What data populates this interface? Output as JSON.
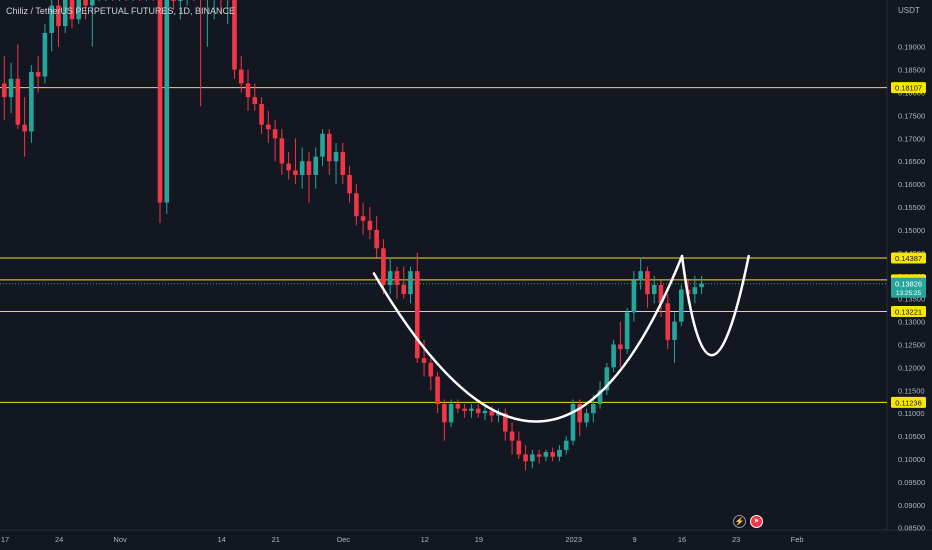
{
  "header": {
    "symbol_title": "Chiliz / TetherUS PERPETUAL FUTURES, 1D, BINANCE",
    "currency": "USDT"
  },
  "colors": {
    "background": "#131722",
    "up": "#26a69a",
    "down": "#f23645",
    "level_line": "#f7e600",
    "level_label_bg": "#f7e600",
    "current_price_bg": "#26a69a",
    "pattern_curve": "#ffffff",
    "axis_text": "#b2b5be"
  },
  "icons": [
    "lightning-icon",
    "flag-icon"
  ],
  "chart_data": {
    "type": "candlestick",
    "title": "Chiliz / TetherUS PERPETUAL FUTURES, 1D, BINANCE",
    "y_axis_unit": "USDT",
    "ylim": [
      0.0845,
      0.2002
    ],
    "y_tick_labels": [
      "0.19000",
      "0.18500",
      "0.18000",
      "0.17500",
      "0.17000",
      "0.16500",
      "0.16000",
      "0.15500",
      "0.15000",
      "0.14500",
      "0.14000",
      "0.13500",
      "0.13000",
      "0.12500",
      "0.12000",
      "0.11500",
      "0.11000",
      "0.10500",
      "0.10000",
      "0.09500",
      "0.09000",
      "0.08500"
    ],
    "x_tick_labels": [
      "17",
      "24",
      "Nov",
      "14",
      "21",
      "Dec",
      "12",
      "19",
      "2023",
      "9",
      "16",
      "23",
      "Feb"
    ],
    "horizontal_levels": [
      {
        "label": "0.18107",
        "value": 0.18107
      },
      {
        "label": "0.14387",
        "value": 0.14387
      },
      {
        "label": "0.13910",
        "value": 0.1391
      },
      {
        "label": "0.13221",
        "value": 0.13221
      },
      {
        "label": "0.11236",
        "value": 0.11236
      }
    ],
    "current_price": {
      "label": "0.13826",
      "value": 0.13826,
      "countdown": "13:25:25"
    },
    "pattern": "cup and handle",
    "candles": [
      {
        "o": 0.182,
        "h": 0.188,
        "l": 0.174,
        "c": 0.179
      },
      {
        "o": 0.179,
        "h": 0.1865,
        "l": 0.1755,
        "c": 0.183
      },
      {
        "o": 0.183,
        "h": 0.1905,
        "l": 0.172,
        "c": 0.173
      },
      {
        "o": 0.173,
        "h": 0.179,
        "l": 0.166,
        "c": 0.1715
      },
      {
        "o": 0.1715,
        "h": 0.186,
        "l": 0.169,
        "c": 0.1845
      },
      {
        "o": 0.1845,
        "h": 0.188,
        "l": 0.18,
        "c": 0.1835
      },
      {
        "o": 0.1835,
        "h": 0.195,
        "l": 0.182,
        "c": 0.193
      },
      {
        "o": 0.193,
        "h": 0.204,
        "l": 0.189,
        "c": 0.199
      },
      {
        "o": 0.199,
        "h": 0.205,
        "l": 0.19,
        "c": 0.1945
      },
      {
        "o": 0.1945,
        "h": 0.206,
        "l": 0.193,
        "c": 0.203
      },
      {
        "o": 0.203,
        "h": 0.206,
        "l": 0.194,
        "c": 0.196
      },
      {
        "o": 0.196,
        "h": 0.206,
        "l": 0.195,
        "c": 0.203
      },
      {
        "o": 0.203,
        "h": 0.206,
        "l": 0.196,
        "c": 0.199
      },
      {
        "o": 0.199,
        "h": 0.206,
        "l": 0.19,
        "c": 0.203
      },
      {
        "o": 0.203,
        "h": 0.206,
        "l": 0.2,
        "c": 0.203
      },
      {
        "o": 0.203,
        "h": 0.206,
        "l": 0.2,
        "c": 0.204
      },
      {
        "o": 0.204,
        "h": 0.206,
        "l": 0.2,
        "c": 0.202
      },
      {
        "o": 0.202,
        "h": 0.206,
        "l": 0.2,
        "c": 0.2035
      },
      {
        "o": 0.2035,
        "h": 0.206,
        "l": 0.2,
        "c": 0.2025
      },
      {
        "o": 0.2025,
        "h": 0.206,
        "l": 0.2,
        "c": 0.204
      },
      {
        "o": 0.204,
        "h": 0.206,
        "l": 0.2,
        "c": 0.203
      },
      {
        "o": 0.203,
        "h": 0.206,
        "l": 0.2,
        "c": 0.204
      },
      {
        "o": 0.204,
        "h": 0.206,
        "l": 0.2,
        "c": 0.203
      },
      {
        "o": 0.203,
        "h": 0.206,
        "l": 0.1515,
        "c": 0.156
      },
      {
        "o": 0.156,
        "h": 0.206,
        "l": 0.1535,
        "c": 0.204
      },
      {
        "o": 0.204,
        "h": 0.206,
        "l": 0.198,
        "c": 0.2
      },
      {
        "o": 0.2,
        "h": 0.206,
        "l": 0.196,
        "c": 0.203
      },
      {
        "o": 0.203,
        "h": 0.206,
        "l": 0.199,
        "c": 0.204
      },
      {
        "o": 0.204,
        "h": 0.206,
        "l": 0.2,
        "c": 0.203
      },
      {
        "o": 0.203,
        "h": 0.206,
        "l": 0.177,
        "c": 0.201
      },
      {
        "o": 0.201,
        "h": 0.206,
        "l": 0.19,
        "c": 0.202
      },
      {
        "o": 0.202,
        "h": 0.206,
        "l": 0.196,
        "c": 0.204
      },
      {
        "o": 0.204,
        "h": 0.206,
        "l": 0.197,
        "c": 0.201
      },
      {
        "o": 0.201,
        "h": 0.206,
        "l": 0.195,
        "c": 0.204
      },
      {
        "o": 0.204,
        "h": 0.206,
        "l": 0.183,
        "c": 0.185
      },
      {
        "o": 0.185,
        "h": 0.188,
        "l": 0.18,
        "c": 0.182
      },
      {
        "o": 0.182,
        "h": 0.185,
        "l": 0.176,
        "c": 0.179
      },
      {
        "o": 0.179,
        "h": 0.182,
        "l": 0.176,
        "c": 0.1775
      },
      {
        "o": 0.1775,
        "h": 0.179,
        "l": 0.171,
        "c": 0.173
      },
      {
        "o": 0.173,
        "h": 0.176,
        "l": 0.169,
        "c": 0.172
      },
      {
        "o": 0.172,
        "h": 0.174,
        "l": 0.165,
        "c": 0.17
      },
      {
        "o": 0.17,
        "h": 0.172,
        "l": 0.162,
        "c": 0.1645
      },
      {
        "o": 0.1645,
        "h": 0.167,
        "l": 0.161,
        "c": 0.163
      },
      {
        "o": 0.163,
        "h": 0.17,
        "l": 0.16,
        "c": 0.162
      },
      {
        "o": 0.162,
        "h": 0.168,
        "l": 0.159,
        "c": 0.165
      },
      {
        "o": 0.165,
        "h": 0.167,
        "l": 0.156,
        "c": 0.162
      },
      {
        "o": 0.162,
        "h": 0.168,
        "l": 0.159,
        "c": 0.166
      },
      {
        "o": 0.166,
        "h": 0.172,
        "l": 0.164,
        "c": 0.171
      },
      {
        "o": 0.171,
        "h": 0.172,
        "l": 0.162,
        "c": 0.165
      },
      {
        "o": 0.165,
        "h": 0.169,
        "l": 0.16,
        "c": 0.167
      },
      {
        "o": 0.167,
        "h": 0.169,
        "l": 0.16,
        "c": 0.162
      },
      {
        "o": 0.162,
        "h": 0.164,
        "l": 0.156,
        "c": 0.158
      },
      {
        "o": 0.158,
        "h": 0.16,
        "l": 0.151,
        "c": 0.153
      },
      {
        "o": 0.153,
        "h": 0.156,
        "l": 0.149,
        "c": 0.152
      },
      {
        "o": 0.152,
        "h": 0.155,
        "l": 0.148,
        "c": 0.15
      },
      {
        "o": 0.15,
        "h": 0.153,
        "l": 0.144,
        "c": 0.146
      },
      {
        "o": 0.146,
        "h": 0.148,
        "l": 0.136,
        "c": 0.138
      },
      {
        "o": 0.138,
        "h": 0.144,
        "l": 0.136,
        "c": 0.141
      },
      {
        "o": 0.141,
        "h": 0.142,
        "l": 0.135,
        "c": 0.138
      },
      {
        "o": 0.138,
        "h": 0.142,
        "l": 0.135,
        "c": 0.136
      },
      {
        "o": 0.136,
        "h": 0.142,
        "l": 0.134,
        "c": 0.141
      },
      {
        "o": 0.141,
        "h": 0.145,
        "l": 0.121,
        "c": 0.122
      },
      {
        "o": 0.122,
        "h": 0.126,
        "l": 0.118,
        "c": 0.121
      },
      {
        "o": 0.121,
        "h": 0.122,
        "l": 0.115,
        "c": 0.118
      },
      {
        "o": 0.118,
        "h": 0.119,
        "l": 0.11,
        "c": 0.112
      },
      {
        "o": 0.112,
        "h": 0.113,
        "l": 0.104,
        "c": 0.108
      },
      {
        "o": 0.108,
        "h": 0.113,
        "l": 0.107,
        "c": 0.112
      },
      {
        "o": 0.112,
        "h": 0.113,
        "l": 0.11,
        "c": 0.111
      },
      {
        "o": 0.111,
        "h": 0.112,
        "l": 0.109,
        "c": 0.1105
      },
      {
        "o": 0.1105,
        "h": 0.112,
        "l": 0.109,
        "c": 0.111
      },
      {
        "o": 0.111,
        "h": 0.112,
        "l": 0.109,
        "c": 0.11
      },
      {
        "o": 0.11,
        "h": 0.1115,
        "l": 0.1085,
        "c": 0.1105
      },
      {
        "o": 0.1105,
        "h": 0.1115,
        "l": 0.108,
        "c": 0.1095
      },
      {
        "o": 0.1095,
        "h": 0.111,
        "l": 0.108,
        "c": 0.11
      },
      {
        "o": 0.11,
        "h": 0.111,
        "l": 0.104,
        "c": 0.106
      },
      {
        "o": 0.106,
        "h": 0.108,
        "l": 0.101,
        "c": 0.104
      },
      {
        "o": 0.104,
        "h": 0.106,
        "l": 0.1,
        "c": 0.101
      },
      {
        "o": 0.101,
        "h": 0.103,
        "l": 0.0975,
        "c": 0.0995
      },
      {
        "o": 0.0995,
        "h": 0.102,
        "l": 0.098,
        "c": 0.101
      },
      {
        "o": 0.101,
        "h": 0.102,
        "l": 0.099,
        "c": 0.1005
      },
      {
        "o": 0.1005,
        "h": 0.102,
        "l": 0.0995,
        "c": 0.1015
      },
      {
        "o": 0.1015,
        "h": 0.1025,
        "l": 0.0995,
        "c": 0.1005
      },
      {
        "o": 0.1005,
        "h": 0.103,
        "l": 0.0995,
        "c": 0.102
      },
      {
        "o": 0.102,
        "h": 0.105,
        "l": 0.101,
        "c": 0.104
      },
      {
        "o": 0.104,
        "h": 0.113,
        "l": 0.103,
        "c": 0.112
      },
      {
        "o": 0.112,
        "h": 0.113,
        "l": 0.105,
        "c": 0.108
      },
      {
        "o": 0.108,
        "h": 0.111,
        "l": 0.107,
        "c": 0.11
      },
      {
        "o": 0.11,
        "h": 0.114,
        "l": 0.108,
        "c": 0.112
      },
      {
        "o": 0.112,
        "h": 0.117,
        "l": 0.111,
        "c": 0.115
      },
      {
        "o": 0.115,
        "h": 0.121,
        "l": 0.114,
        "c": 0.12
      },
      {
        "o": 0.12,
        "h": 0.126,
        "l": 0.119,
        "c": 0.125
      },
      {
        "o": 0.125,
        "h": 0.13,
        "l": 0.12,
        "c": 0.124
      },
      {
        "o": 0.124,
        "h": 0.133,
        "l": 0.123,
        "c": 0.132
      },
      {
        "o": 0.132,
        "h": 0.141,
        "l": 0.13,
        "c": 0.139
      },
      {
        "o": 0.139,
        "h": 0.144,
        "l": 0.137,
        "c": 0.141
      },
      {
        "o": 0.141,
        "h": 0.142,
        "l": 0.133,
        "c": 0.136
      },
      {
        "o": 0.136,
        "h": 0.14,
        "l": 0.134,
        "c": 0.138
      },
      {
        "o": 0.138,
        "h": 0.139,
        "l": 0.131,
        "c": 0.134
      },
      {
        "o": 0.134,
        "h": 0.136,
        "l": 0.124,
        "c": 0.126
      },
      {
        "o": 0.126,
        "h": 0.132,
        "l": 0.121,
        "c": 0.13
      },
      {
        "o": 0.13,
        "h": 0.138,
        "l": 0.129,
        "c": 0.137
      },
      {
        "o": 0.137,
        "h": 0.139,
        "l": 0.134,
        "c": 0.136
      },
      {
        "o": 0.136,
        "h": 0.14,
        "l": 0.134,
        "c": 0.1375
      },
      {
        "o": 0.1375,
        "h": 0.14,
        "l": 0.136,
        "c": 0.1383
      }
    ]
  }
}
